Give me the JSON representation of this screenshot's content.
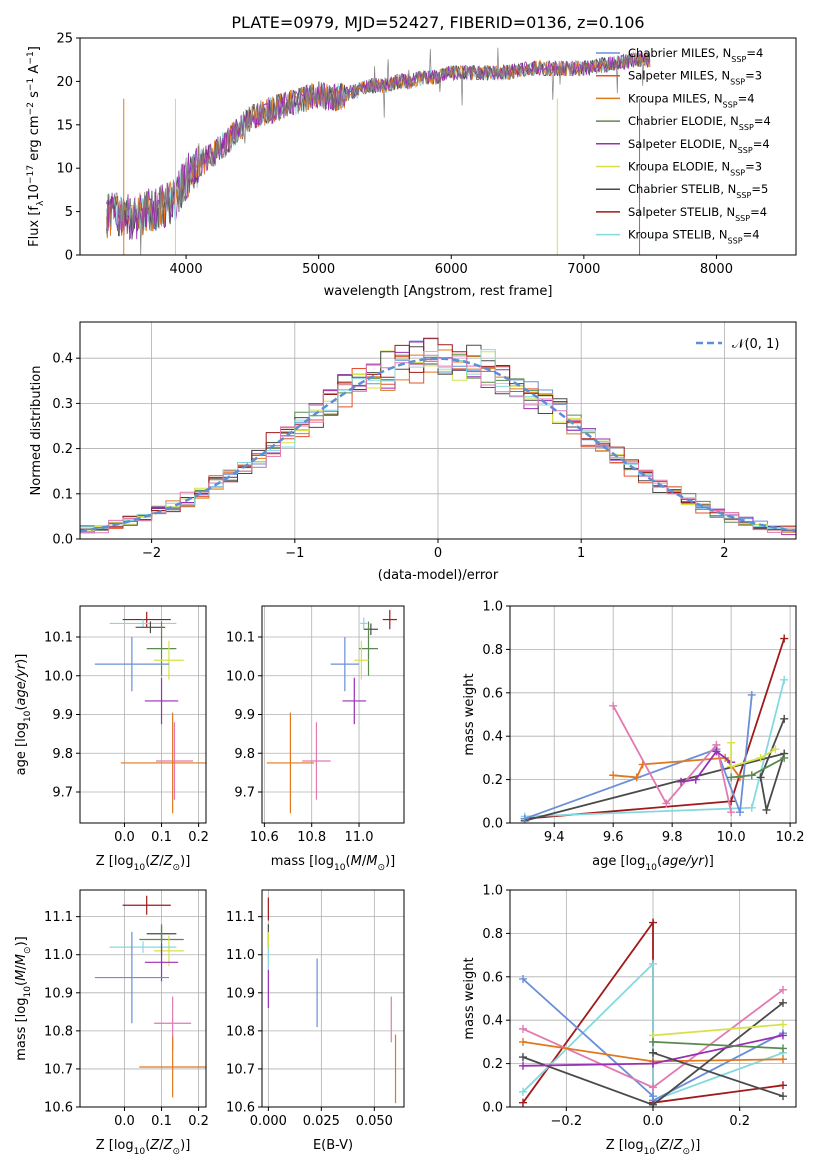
{
  "title": "PLATE=0979, MJD=52427, FIBERID=0136, z=0.106",
  "colors": {
    "Chabrier MILES": "#6a8fd8",
    "Salpeter MILES": "#e4502b",
    "Kroupa MILES": "#e0781e",
    "Chabrier ELODIE": "#5a8a4e",
    "Salpeter ELODIE": "#9a2fb3",
    "Kroupa ELODIE": "#d6e24a",
    "Chabrier STELIB": "#4a4a4a",
    "Salpeter STELIB": "#a11a1a",
    "Kroupa STELIB": "#86d8df",
    "pink": "#e07ab0",
    "normal": "#5b8fd6"
  },
  "chart_data": [
    {
      "type": "line",
      "panel": "spectrum",
      "xlabel": "wavelength [Angstrom, rest frame]",
      "ylabel_parts": [
        "Flux [f",
        "λ",
        "10",
        "−17",
        " erg cm",
        "−2",
        " s",
        "−1",
        " A",
        "−1",
        "]"
      ],
      "xlim": [
        3200,
        8600
      ],
      "ylim": [
        0,
        25
      ],
      "xticks": [
        4000,
        5000,
        6000,
        7000,
        8000
      ],
      "yticks": [
        0,
        5,
        10,
        15,
        20,
        25
      ],
      "legend_position": "upper right",
      "legend": [
        {
          "label": "Chabrier MILES, N",
          "sub": "SSP",
          "val": "=4",
          "color": "#6a8fd8"
        },
        {
          "label": "Salpeter MILES, N",
          "sub": "SSP",
          "val": "=3",
          "color": "#e4502b"
        },
        {
          "label": "Kroupa MILES, N",
          "sub": "SSP",
          "val": "=4",
          "color": "#e0781e"
        },
        {
          "label": "Chabrier ELODIE, N",
          "sub": "SSP",
          "val": "=4",
          "color": "#5a8a4e"
        },
        {
          "label": "Salpeter ELODIE, N",
          "sub": "SSP",
          "val": "=4",
          "color": "#9a2fb3"
        },
        {
          "label": "Kroupa ELODIE, N",
          "sub": "SSP",
          "val": "=3",
          "color": "#d6e24a"
        },
        {
          "label": "Chabrier STELIB, N",
          "sub": "SSP",
          "val": "=5",
          "color": "#4a4a4a"
        },
        {
          "label": "Salpeter STELIB, N",
          "sub": "SSP",
          "val": "=4",
          "color": "#a11a1a"
        },
        {
          "label": "Kroupa STELIB, N",
          "sub": "SSP",
          "val": "=4",
          "color": "#86d8df"
        }
      ],
      "envelope": {
        "x": [
          3400,
          3500,
          3600,
          3700,
          3800,
          3900,
          4000,
          4100,
          4200,
          4300,
          4400,
          4500,
          4600,
          4700,
          4800,
          4900,
          5000,
          5100,
          5200,
          5300,
          5400,
          5500,
          5600,
          5700,
          5800,
          5900,
          6000,
          6200,
          6400,
          6600,
          6800,
          7000,
          7200,
          7400,
          7500
        ],
        "y": [
          4.5,
          4.8,
          4.2,
          5.0,
          5.5,
          6.0,
          9.0,
          10.5,
          11.5,
          13.0,
          14.5,
          16.0,
          16.5,
          17.0,
          17.5,
          18.0,
          18.5,
          18.0,
          18.5,
          19.0,
          19.5,
          19.5,
          20.0,
          20.0,
          20.5,
          20.5,
          21.0,
          21.0,
          21.0,
          21.5,
          21.5,
          21.5,
          22.0,
          22.5,
          22.5
        ]
      },
      "dropouts": [
        {
          "x": 3530,
          "color": "#e0781e"
        },
        {
          "x": 3920,
          "color": "#d6e24a"
        },
        {
          "x": 6800,
          "color": "#d6e24a"
        },
        {
          "x": 7420,
          "color": "#e4502b"
        }
      ]
    },
    {
      "type": "area",
      "panel": "residuals",
      "xlabel": "(data-model)/error",
      "ylabel": "Normed distribution",
      "xlim": [
        -2.5,
        2.5
      ],
      "ylim": [
        0,
        0.48
      ],
      "xticks": [
        -2,
        -1,
        0,
        1,
        2
      ],
      "yticks": [
        0.0,
        0.1,
        0.2,
        0.3,
        0.4
      ],
      "legend": "𝒩(0, 1)",
      "bin_width": 0.1,
      "normal_mean": 0,
      "normal_sigma": 1
    },
    {
      "type": "scatter",
      "panel": "age-vs-Z",
      "xlabel": "Z [log10(Z/Z⊙)]",
      "ylabel": "age [log10(age/yr)]",
      "xlim": [
        -0.12,
        0.22
      ],
      "ylim": [
        9.62,
        10.18
      ],
      "xticks": [
        0.0,
        0.1,
        0.2
      ],
      "yticks": [
        9.7,
        9.8,
        9.9,
        10.0,
        10.1
      ],
      "points": [
        {
          "x": 0.06,
          "y": 10.145,
          "xe": 0.065,
          "ye": 0.02,
          "color": "#a11a1a"
        },
        {
          "x": 0.05,
          "y": 10.135,
          "xe": 0.09,
          "ye": 0.01,
          "color": "#86d8df"
        },
        {
          "x": 0.07,
          "y": 10.125,
          "xe": 0.04,
          "ye": 0.015,
          "color": "#4a4a4a"
        },
        {
          "x": 0.1,
          "y": 10.07,
          "xe": 0.04,
          "ye": 0.07,
          "color": "#5a8a4e"
        },
        {
          "x": 0.12,
          "y": 10.04,
          "xe": 0.04,
          "ye": 0.05,
          "color": "#d6e24a"
        },
        {
          "x": 0.02,
          "y": 10.03,
          "xe": 0.1,
          "ye": 0.07,
          "color": "#6a8fd8"
        },
        {
          "x": 0.1,
          "y": 9.935,
          "xe": 0.045,
          "ye": 0.06,
          "color": "#9a2fb3"
        },
        {
          "x": 0.135,
          "y": 9.78,
          "xe": 0.05,
          "ye": 0.1,
          "color": "#e07ab0"
        },
        {
          "x": 0.13,
          "y": 9.775,
          "xe": 0.14,
          "ye": 0.13,
          "color": "#e0781e"
        }
      ]
    },
    {
      "type": "scatter",
      "panel": "age-vs-mass",
      "xlabel": "mass [log10(M/M⊙)]",
      "xlim": [
        10.59,
        11.19
      ],
      "ylim": [
        9.62,
        10.18
      ],
      "xticks": [
        10.6,
        10.8,
        11.0
      ],
      "yticks": [
        9.7,
        9.8,
        9.9,
        10.0,
        10.1
      ],
      "points": [
        {
          "x": 11.13,
          "y": 10.145,
          "xe": 0.03,
          "ye": 0.025,
          "color": "#a11a1a"
        },
        {
          "x": 11.02,
          "y": 10.135,
          "xe": 0.015,
          "ye": 0.015,
          "color": "#86d8df"
        },
        {
          "x": 11.05,
          "y": 10.12,
          "xe": 0.03,
          "ye": 0.015,
          "color": "#4a4a4a"
        },
        {
          "x": 11.04,
          "y": 10.07,
          "xe": 0.04,
          "ye": 0.07,
          "color": "#5a8a4e"
        },
        {
          "x": 11.01,
          "y": 10.04,
          "xe": 0.03,
          "ye": 0.05,
          "color": "#d6e24a"
        },
        {
          "x": 10.94,
          "y": 10.03,
          "xe": 0.06,
          "ye": 0.07,
          "color": "#6a8fd8"
        },
        {
          "x": 10.98,
          "y": 9.935,
          "xe": 0.05,
          "ye": 0.06,
          "color": "#9a2fb3"
        },
        {
          "x": 10.82,
          "y": 9.78,
          "xe": 0.06,
          "ye": 0.1,
          "color": "#e07ab0"
        },
        {
          "x": 10.71,
          "y": 9.775,
          "xe": 0.1,
          "ye": 0.13,
          "color": "#e0781e"
        }
      ]
    },
    {
      "type": "line",
      "panel": "weight-vs-age",
      "xlabel": "age [log10(age/yr)]",
      "ylabel": "mass weight",
      "xlim": [
        9.25,
        10.22
      ],
      "ylim": [
        0,
        1.0
      ],
      "xticks": [
        9.4,
        9.6,
        9.8,
        10.0,
        10.2
      ],
      "yticks": [
        0.0,
        0.2,
        0.4,
        0.6,
        0.8,
        1.0
      ],
      "series": [
        {
          "color": "#a11a1a",
          "x": [
            9.3,
            10.0,
            10.18
          ],
          "y": [
            0.02,
            0.1,
            0.85
          ]
        },
        {
          "color": "#86d8df",
          "x": [
            9.3,
            10.07,
            10.18
          ],
          "y": [
            0.03,
            0.07,
            0.66
          ]
        },
        {
          "color": "#4a4a4a",
          "x": [
            9.3,
            10.18,
            10.12,
            10.1,
            10.18
          ],
          "y": [
            0.01,
            0.32,
            0.06,
            0.21,
            0.48
          ]
        },
        {
          "color": "#6a8fd8",
          "x": [
            9.3,
            9.95,
            10.03,
            10.07
          ],
          "y": [
            0.02,
            0.34,
            0.05,
            0.59
          ]
        },
        {
          "color": "#e0781e",
          "x": [
            9.6,
            9.68,
            9.7,
            9.98,
            10.03
          ],
          "y": [
            0.22,
            0.21,
            0.27,
            0.3,
            0.21
          ]
        },
        {
          "color": "#e07ab0",
          "x": [
            9.6,
            9.78,
            9.95,
            10.0
          ],
          "y": [
            0.54,
            0.09,
            0.36,
            0.05
          ]
        },
        {
          "color": "#9a2fb3",
          "x": [
            9.83,
            9.88,
            9.95,
            10.0
          ],
          "y": [
            0.19,
            0.2,
            0.33,
            0.28
          ]
        },
        {
          "color": "#d6e24a",
          "x": [
            10.0,
            10.0,
            10.1,
            10.15
          ],
          "y": [
            0.37,
            0.26,
            0.3,
            0.34
          ]
        },
        {
          "color": "#5a8a4e",
          "x": [
            10.0,
            10.07,
            10.18
          ],
          "y": [
            0.21,
            0.22,
            0.3
          ]
        }
      ]
    },
    {
      "type": "scatter",
      "panel": "mass-vs-Z",
      "xlabel": "Z [log10(Z/Z⊙)]",
      "ylabel": "mass [log10(M/M⊙)]",
      "xlim": [
        -0.12,
        0.22
      ],
      "ylim": [
        10.6,
        11.17
      ],
      "xticks": [
        0.0,
        0.1,
        0.2
      ],
      "yticks": [
        10.6,
        10.7,
        10.8,
        10.9,
        11.0,
        11.1
      ],
      "points": [
        {
          "x": 0.06,
          "y": 11.13,
          "xe": 0.065,
          "ye": 0.025,
          "color": "#a11a1a"
        },
        {
          "x": 0.1,
          "y": 11.055,
          "xe": 0.04,
          "ye": 0.02,
          "color": "#4a4a4a"
        },
        {
          "x": 0.1,
          "y": 11.04,
          "xe": 0.06,
          "ye": 0.04,
          "color": "#5a8a4e"
        },
        {
          "x": 0.12,
          "y": 11.01,
          "xe": 0.04,
          "ye": 0.04,
          "color": "#d6e24a"
        },
        {
          "x": 0.05,
          "y": 11.02,
          "xe": 0.09,
          "ye": 0.015,
          "color": "#86d8df"
        },
        {
          "x": 0.1,
          "y": 10.98,
          "xe": 0.045,
          "ye": 0.05,
          "color": "#9a2fb3"
        },
        {
          "x": 0.02,
          "y": 10.94,
          "xe": 0.1,
          "ye": 0.12,
          "color": "#6a8fd8"
        },
        {
          "x": 0.13,
          "y": 10.82,
          "xe": 0.05,
          "ye": 0.07,
          "color": "#e07ab0"
        },
        {
          "x": 0.13,
          "y": 10.705,
          "xe": 0.09,
          "ye": 0.08,
          "color": "#e0781e"
        }
      ]
    },
    {
      "type": "scatter",
      "panel": "mass-vs-EBV",
      "xlabel": "E(B-V)",
      "xlim": [
        -0.003,
        0.064
      ],
      "ylim": [
        10.6,
        11.17
      ],
      "xticks": [
        0.0,
        0.025,
        0.05
      ],
      "xtick_labels": [
        "0.000",
        "0.025",
        "0.050"
      ],
      "yticks": [
        10.6,
        10.7,
        10.8,
        10.9,
        11.0,
        11.1
      ],
      "points": [
        {
          "x": 0.0,
          "y": 11.12,
          "xe": 0,
          "ye": 0.03,
          "color": "#a11a1a"
        },
        {
          "x": 0.0,
          "y": 11.05,
          "xe": 0,
          "ye": 0.03,
          "color": "#4a4a4a"
        },
        {
          "x": 0.0,
          "y": 11.02,
          "xe": 0,
          "ye": 0.04,
          "color": "#d6e24a"
        },
        {
          "x": 0.0,
          "y": 10.99,
          "xe": 0,
          "ye": 0.03,
          "color": "#86d8df"
        },
        {
          "x": 0.0,
          "y": 10.91,
          "xe": 0,
          "ye": 0.05,
          "color": "#9a2fb3"
        },
        {
          "x": 0.023,
          "y": 10.9,
          "xe": 0,
          "ye": 0.09,
          "color": "#6a8fd8"
        },
        {
          "x": 0.058,
          "y": 10.83,
          "xe": 0,
          "ye": 0.06,
          "color": "#e07ab0"
        },
        {
          "x": 0.06,
          "y": 10.7,
          "xe": 0,
          "ye": 0.09,
          "color": "#e0781e"
        }
      ]
    },
    {
      "type": "line",
      "panel": "weight-vs-Z",
      "xlabel": "Z [log10(Z/Z⊙)]",
      "ylabel": "mass weight",
      "xlim": [
        -0.33,
        0.33
      ],
      "ylim": [
        0,
        1.0
      ],
      "xticks": [
        -0.2,
        0.0,
        0.2
      ],
      "yticks": [
        0.0,
        0.2,
        0.4,
        0.6,
        0.8,
        1.0
      ],
      "series": [
        {
          "color": "#a11a1a",
          "x": [
            -0.3,
            0.0,
            0.0,
            0.3
          ],
          "y": [
            0.02,
            0.85,
            0.02,
            0.1
          ]
        },
        {
          "color": "#86d8df",
          "x": [
            -0.3,
            0.0,
            0.0,
            0.3
          ],
          "y": [
            0.07,
            0.66,
            0.03,
            0.25
          ]
        },
        {
          "color": "#6a8fd8",
          "x": [
            -0.3,
            0.0,
            0.0,
            0.3
          ],
          "y": [
            0.59,
            0.05,
            0.03,
            0.34
          ]
        },
        {
          "color": "#e07ab0",
          "x": [
            -0.3,
            0.0,
            0.3
          ],
          "y": [
            0.36,
            0.09,
            0.54
          ]
        },
        {
          "color": "#e0781e",
          "x": [
            -0.3,
            0.0,
            0.3
          ],
          "y": [
            0.3,
            0.21,
            0.22
          ]
        },
        {
          "color": "#4a4a4a",
          "x": [
            -0.3,
            0.0,
            0.3
          ],
          "y": [
            0.23,
            0.01,
            0.48
          ]
        },
        {
          "color": "#9a2fb3",
          "x": [
            -0.3,
            0.0,
            0.3
          ],
          "y": [
            0.19,
            0.2,
            0.33
          ]
        },
        {
          "color": "#d6e24a",
          "x": [
            0.0,
            0.3
          ],
          "y": [
            0.33,
            0.38
          ]
        },
        {
          "color": "#5a8a4e",
          "x": [
            0.0,
            0.3
          ],
          "y": [
            0.3,
            0.27
          ]
        },
        {
          "color": "#4a4a4a",
          "x": [
            0.0,
            0.3
          ],
          "y": [
            0.25,
            0.05
          ]
        }
      ]
    }
  ]
}
